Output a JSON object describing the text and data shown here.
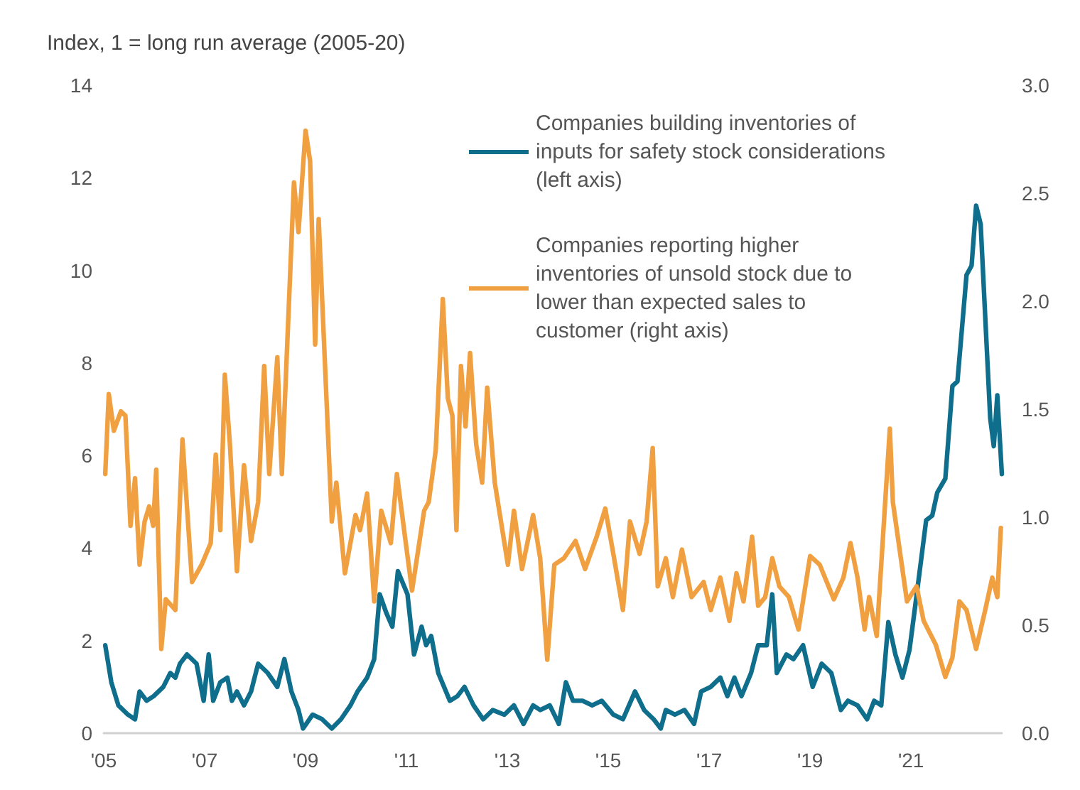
{
  "chart_data": {
    "type": "line",
    "ylabel": "Index, 1 = long run average (2005-20)",
    "xlim": [
      2005,
      2022.8
    ],
    "xticks": [
      {
        "value": 2005,
        "label": "'05"
      },
      {
        "value": 2007,
        "label": "'07"
      },
      {
        "value": 2009,
        "label": "'09"
      },
      {
        "value": 2011,
        "label": "'11"
      },
      {
        "value": 2013,
        "label": "'13"
      },
      {
        "value": 2015,
        "label": "'15"
      },
      {
        "value": 2017,
        "label": "'17"
      },
      {
        "value": 2019,
        "label": "'19"
      },
      {
        "value": 2021,
        "label": "'21"
      }
    ],
    "ylim": [
      0,
      14
    ],
    "yticks": [
      0,
      2,
      4,
      6,
      8,
      10,
      12,
      14
    ],
    "y2lim": [
      0,
      3
    ],
    "y2ticks": [
      {
        "value": 0,
        "label": "0.0"
      },
      {
        "value": 0.5,
        "label": "0.5"
      },
      {
        "value": 1,
        "label": "1.0"
      },
      {
        "value": 1.5,
        "label": "1.5"
      },
      {
        "value": 2,
        "label": "2.0"
      },
      {
        "value": 2.5,
        "label": "2.5"
      },
      {
        "value": 3,
        "label": "3.0"
      }
    ],
    "grid": false,
    "legend": "top right",
    "marker": "none",
    "line_style": "solid",
    "series": [
      {
        "name": "Companies building inventories of inputs for safety stock considerations (left axis)",
        "color": "#0e6e8c",
        "x": [
          2005.03,
          2005.15,
          2005.29,
          2005.48,
          2005.62,
          2005.71,
          2005.85,
          2005.99,
          2006.18,
          2006.32,
          2006.42,
          2006.51,
          2006.65,
          2006.84,
          2006.98,
          2007.08,
          2007.17,
          2007.31,
          2007.45,
          2007.54,
          2007.64,
          2007.78,
          2007.92,
          2008.06,
          2008.25,
          2008.44,
          2008.58,
          2008.72,
          2008.86,
          2008.95,
          2009.14,
          2009.33,
          2009.52,
          2009.7,
          2009.89,
          2010.03,
          2010.22,
          2010.36,
          2010.47,
          2010.6,
          2010.72,
          2010.83,
          2011.02,
          2011.15,
          2011.3,
          2011.39,
          2011.49,
          2011.63,
          2011.86,
          2012.01,
          2012.15,
          2012.33,
          2012.52,
          2012.71,
          2012.94,
          2013.13,
          2013.32,
          2013.51,
          2013.65,
          2013.84,
          2014.02,
          2014.16,
          2014.3,
          2014.49,
          2014.68,
          2014.87,
          2015.1,
          2015.29,
          2015.53,
          2015.71,
          2015.9,
          2016.04,
          2016.14,
          2016.32,
          2016.51,
          2016.7,
          2016.84,
          2017.03,
          2017.22,
          2017.36,
          2017.5,
          2017.64,
          2017.83,
          2017.97,
          2018.14,
          2018.25,
          2018.34,
          2018.53,
          2018.67,
          2018.86,
          2019.05,
          2019.23,
          2019.42,
          2019.61,
          2019.75,
          2019.94,
          2020.13,
          2020.27,
          2020.41,
          2020.55,
          2020.69,
          2020.83,
          2020.97,
          2021.16,
          2021.3,
          2021.42,
          2021.52,
          2021.68,
          2021.82,
          2021.92,
          2022.1,
          2022.2,
          2022.29,
          2022.38,
          2022.57,
          2022.64,
          2022.71,
          2022.8
        ],
        "values": [
          1.9,
          1.1,
          0.6,
          0.4,
          0.3,
          0.9,
          0.7,
          0.8,
          1.0,
          1.3,
          1.2,
          1.5,
          1.7,
          1.5,
          0.7,
          1.7,
          0.7,
          1.1,
          1.2,
          0.7,
          0.9,
          0.6,
          0.9,
          1.5,
          1.3,
          1.0,
          1.6,
          0.9,
          0.5,
          0.1,
          0.4,
          0.3,
          0.1,
          0.3,
          0.6,
          0.9,
          1.2,
          1.6,
          3.0,
          2.6,
          2.3,
          3.5,
          3.0,
          1.7,
          2.3,
          1.9,
          2.1,
          1.3,
          0.7,
          0.8,
          1.0,
          0.6,
          0.3,
          0.5,
          0.4,
          0.6,
          0.2,
          0.6,
          0.5,
          0.6,
          0.2,
          1.1,
          0.7,
          0.7,
          0.6,
          0.7,
          0.4,
          0.3,
          0.9,
          0.5,
          0.3,
          0.1,
          0.5,
          0.4,
          0.5,
          0.2,
          0.9,
          1.0,
          1.2,
          0.8,
          1.2,
          0.8,
          1.3,
          1.9,
          1.9,
          3.0,
          1.3,
          1.7,
          1.6,
          1.9,
          1.0,
          1.5,
          1.3,
          0.5,
          0.7,
          0.6,
          0.3,
          0.7,
          0.6,
          2.4,
          1.7,
          1.2,
          1.8,
          3.4,
          4.6,
          4.7,
          5.2,
          5.5,
          7.5,
          7.6,
          9.9,
          10.1,
          11.4,
          11.0,
          6.8,
          6.2,
          7.3,
          5.6
        ]
      },
      {
        "name": "Companies reporting higher inventories of unsold stock due to lower than expected sales to customer (right axis)",
        "color": "#f0a040",
        "axis": "y2",
        "x": [
          2005.03,
          2005.1,
          2005.2,
          2005.34,
          2005.43,
          2005.53,
          2005.62,
          2005.71,
          2005.81,
          2005.9,
          2005.98,
          2006.04,
          2006.14,
          2006.23,
          2006.42,
          2006.56,
          2006.75,
          2006.94,
          2007.12,
          2007.22,
          2007.31,
          2007.4,
          2007.5,
          2007.64,
          2007.78,
          2007.92,
          2008.06,
          2008.18,
          2008.28,
          2008.44,
          2008.53,
          2008.77,
          2008.86,
          2009.0,
          2009.09,
          2009.19,
          2009.26,
          2009.52,
          2009.61,
          2009.78,
          2009.99,
          2010.08,
          2010.22,
          2010.36,
          2010.5,
          2010.69,
          2010.81,
          2010.97,
          2011.11,
          2011.35,
          2011.44,
          2011.58,
          2011.72,
          2011.82,
          2011.91,
          2011.99,
          2012.08,
          2012.17,
          2012.26,
          2012.38,
          2012.5,
          2012.6,
          2012.75,
          2013.01,
          2013.13,
          2013.29,
          2013.51,
          2013.65,
          2013.79,
          2013.93,
          2014.12,
          2014.35,
          2014.54,
          2014.77,
          2014.94,
          2015.1,
          2015.29,
          2015.43,
          2015.62,
          2015.76,
          2015.88,
          2015.98,
          2016.14,
          2016.28,
          2016.46,
          2016.65,
          2016.89,
          2017.03,
          2017.22,
          2017.4,
          2017.54,
          2017.68,
          2017.85,
          2017.97,
          2018.11,
          2018.25,
          2018.39,
          2018.58,
          2018.77,
          2019.0,
          2019.19,
          2019.47,
          2019.66,
          2019.8,
          2019.94,
          2020.08,
          2020.17,
          2020.32,
          2020.58,
          2020.64,
          2020.92,
          2021.11,
          2021.25,
          2021.49,
          2021.68,
          2021.82,
          2021.96,
          2022.1,
          2022.29,
          2022.47,
          2022.61,
          2022.71,
          2022.78
        ],
        "values": [
          1.2,
          1.57,
          1.4,
          1.49,
          1.47,
          0.96,
          1.18,
          0.78,
          0.98,
          1.05,
          0.96,
          1.22,
          0.39,
          0.62,
          0.57,
          1.36,
          0.7,
          0.78,
          0.88,
          1.29,
          0.94,
          1.66,
          1.34,
          0.75,
          1.24,
          0.89,
          1.07,
          1.7,
          1.2,
          1.74,
          1.2,
          2.55,
          2.32,
          2.79,
          2.65,
          1.8,
          2.38,
          0.98,
          1.16,
          0.74,
          1.01,
          0.94,
          1.11,
          0.61,
          1.03,
          0.88,
          1.2,
          0.91,
          0.66,
          1.03,
          1.07,
          1.31,
          2.01,
          1.55,
          1.47,
          0.94,
          1.7,
          1.42,
          1.76,
          1.34,
          1.16,
          1.6,
          1.16,
          0.78,
          1.03,
          0.76,
          1.01,
          0.81,
          0.34,
          0.78,
          0.81,
          0.89,
          0.76,
          0.91,
          1.04,
          0.83,
          0.57,
          0.98,
          0.83,
          0.98,
          1.32,
          0.68,
          0.81,
          0.63,
          0.85,
          0.63,
          0.7,
          0.57,
          0.72,
          0.52,
          0.74,
          0.61,
          0.91,
          0.59,
          0.63,
          0.81,
          0.68,
          0.63,
          0.48,
          0.82,
          0.78,
          0.62,
          0.72,
          0.88,
          0.72,
          0.48,
          0.63,
          0.45,
          1.41,
          1.07,
          0.61,
          0.68,
          0.52,
          0.41,
          0.26,
          0.35,
          0.61,
          0.57,
          0.39,
          0.57,
          0.72,
          0.63,
          0.95
        ]
      }
    ]
  }
}
